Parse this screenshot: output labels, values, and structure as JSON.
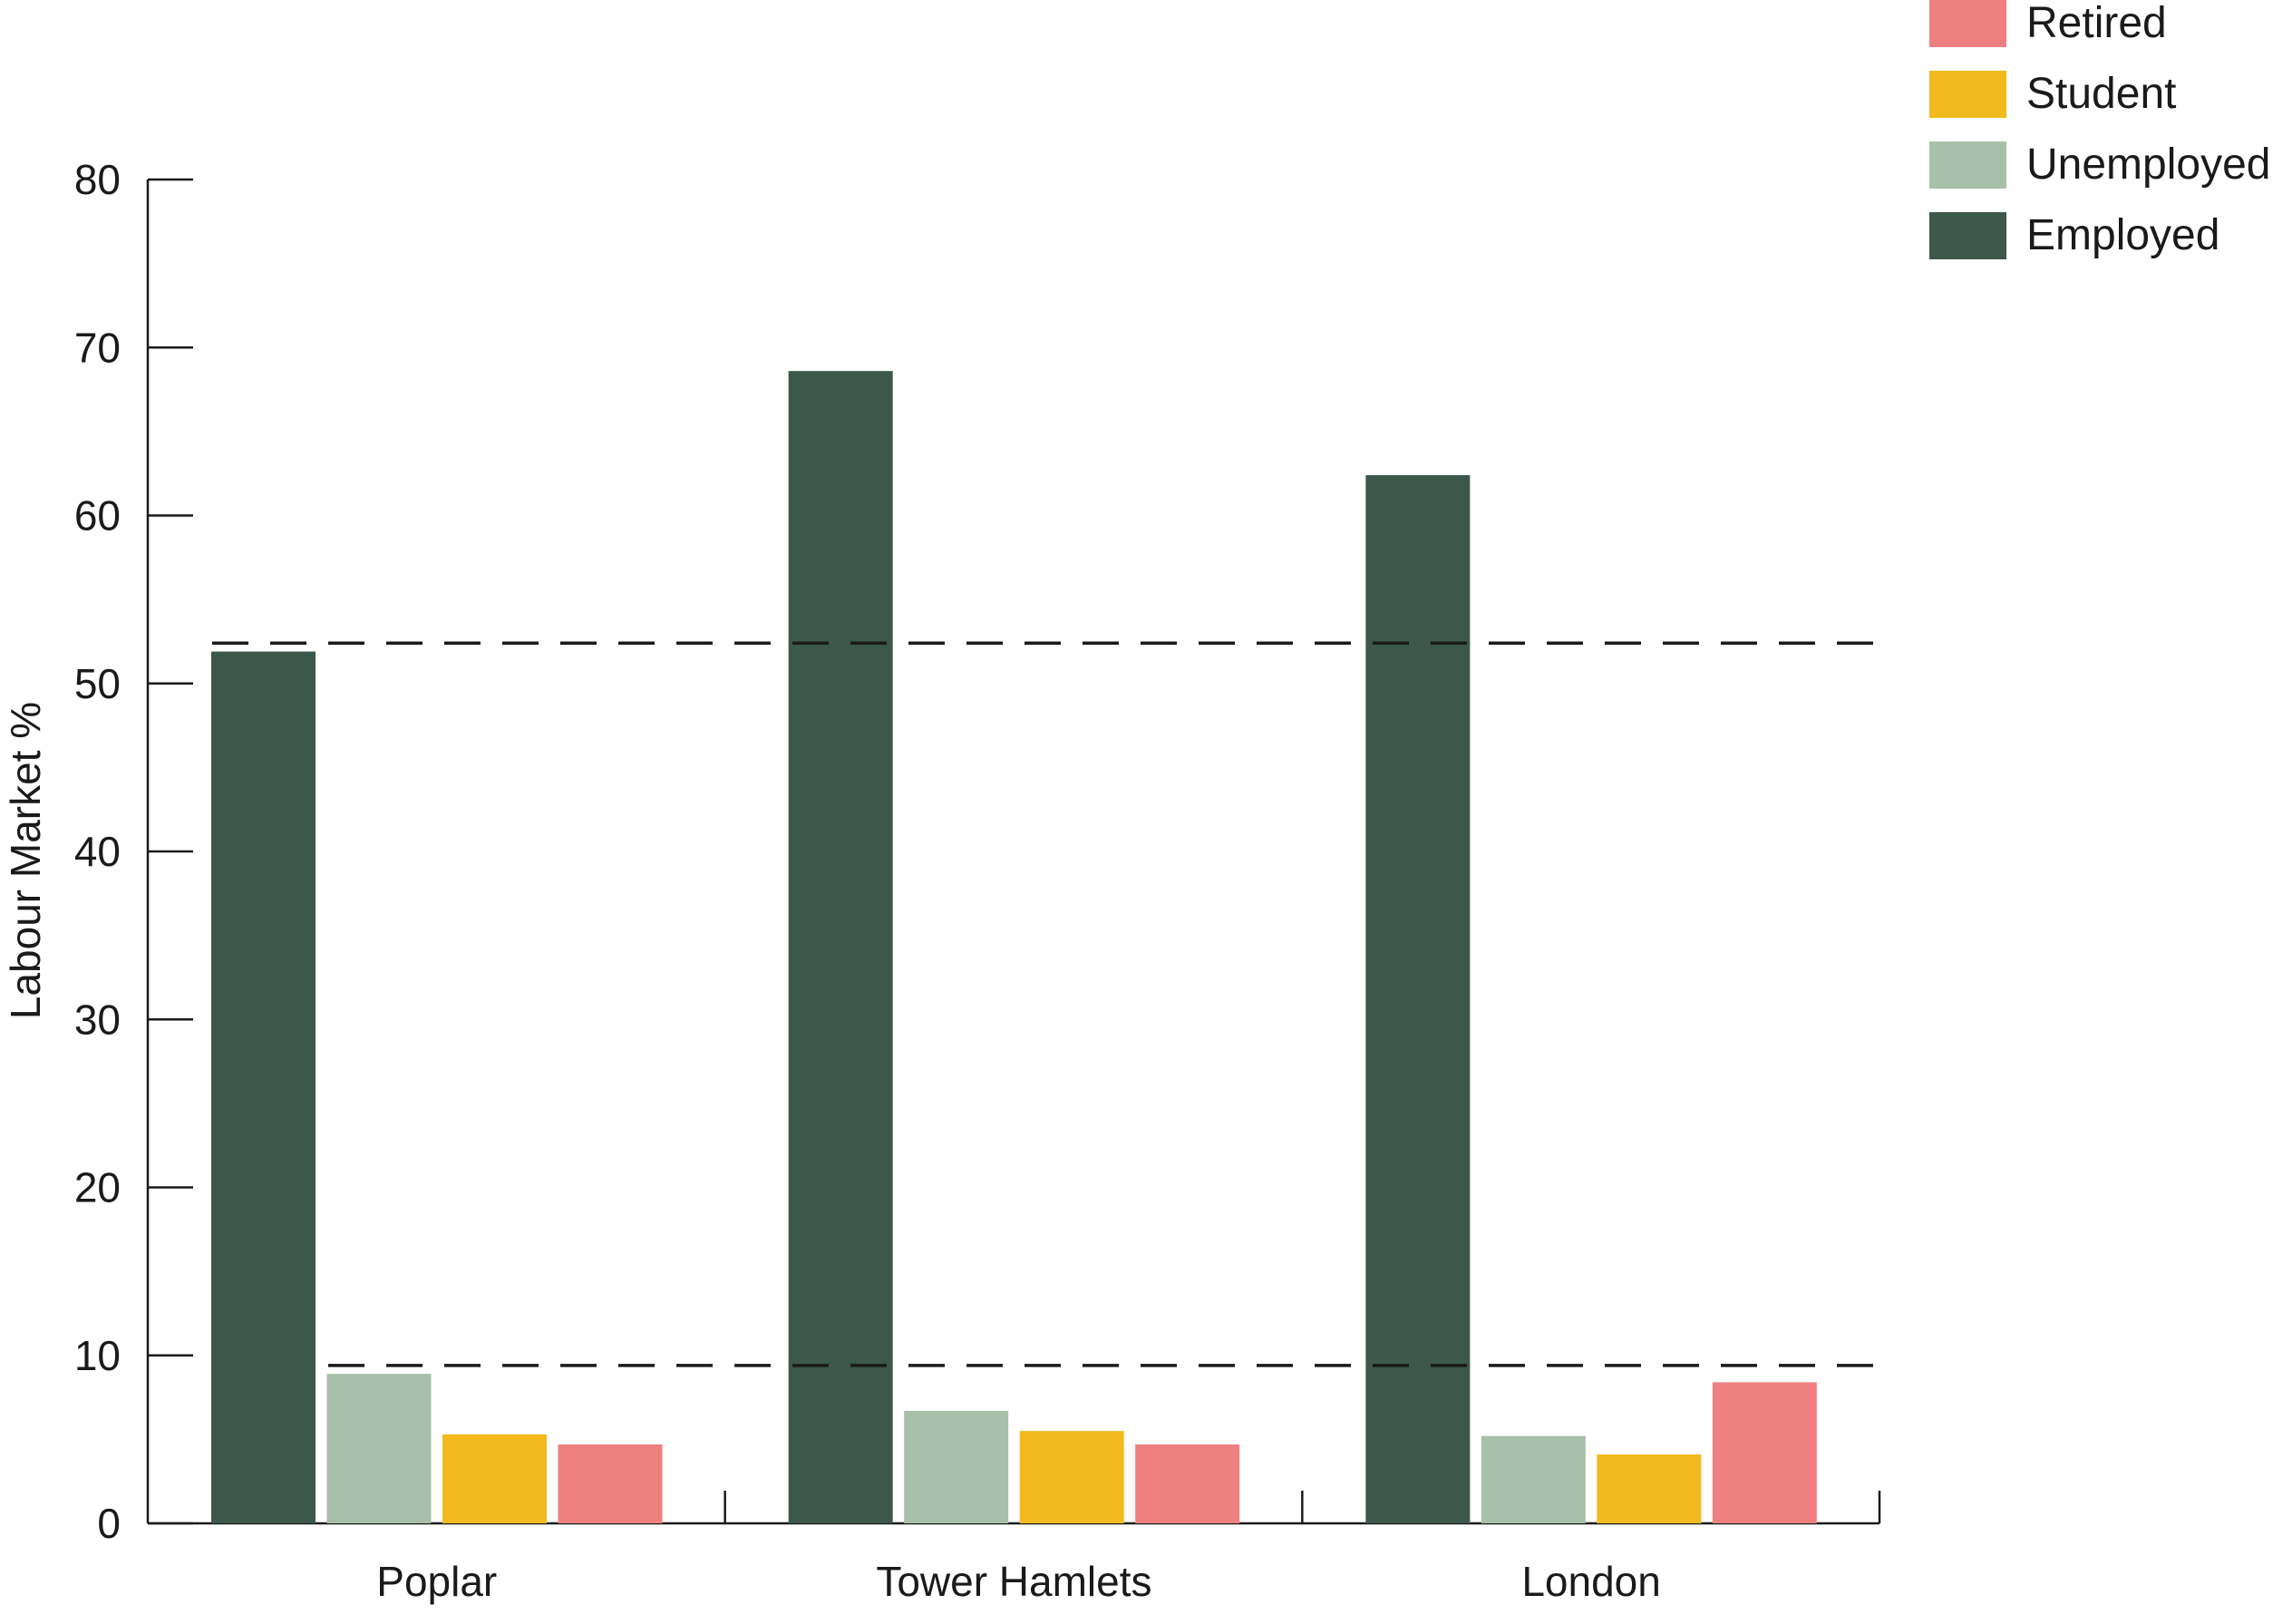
{
  "chart_data": {
    "type": "bar",
    "title": "",
    "xlabel": "",
    "ylabel": "Labour Market %",
    "ylim": [
      0,
      80
    ],
    "yticks": [
      0,
      10,
      20,
      30,
      40,
      50,
      60,
      70,
      80
    ],
    "categories": [
      "Poplar",
      "Tower Hamlets",
      "London"
    ],
    "series": [
      {
        "name": "Employed",
        "color": "#3c584a",
        "values": [
          51.9,
          68.6,
          62.4
        ]
      },
      {
        "name": "Unemployed",
        "color": "#a8bfa9",
        "values": [
          8.9,
          6.7,
          5.2
        ]
      },
      {
        "name": "Student",
        "color": "#f1ba1f",
        "values": [
          5.3,
          5.5,
          4.1
        ]
      },
      {
        "name": "Retired",
        "color": "#ef8080",
        "values": [
          4.7,
          4.7,
          8.4
        ]
      }
    ],
    "reference_lines": [
      {
        "value": 52.4,
        "style": "dashed",
        "color": "#1a1a1a"
      },
      {
        "value": 9.4,
        "style": "dashed",
        "color": "#1a1a1a"
      }
    ],
    "legend": {
      "placement": "top-right",
      "order": [
        "Retired",
        "Student",
        "Unemployed",
        "Employed"
      ]
    },
    "grid": false
  }
}
